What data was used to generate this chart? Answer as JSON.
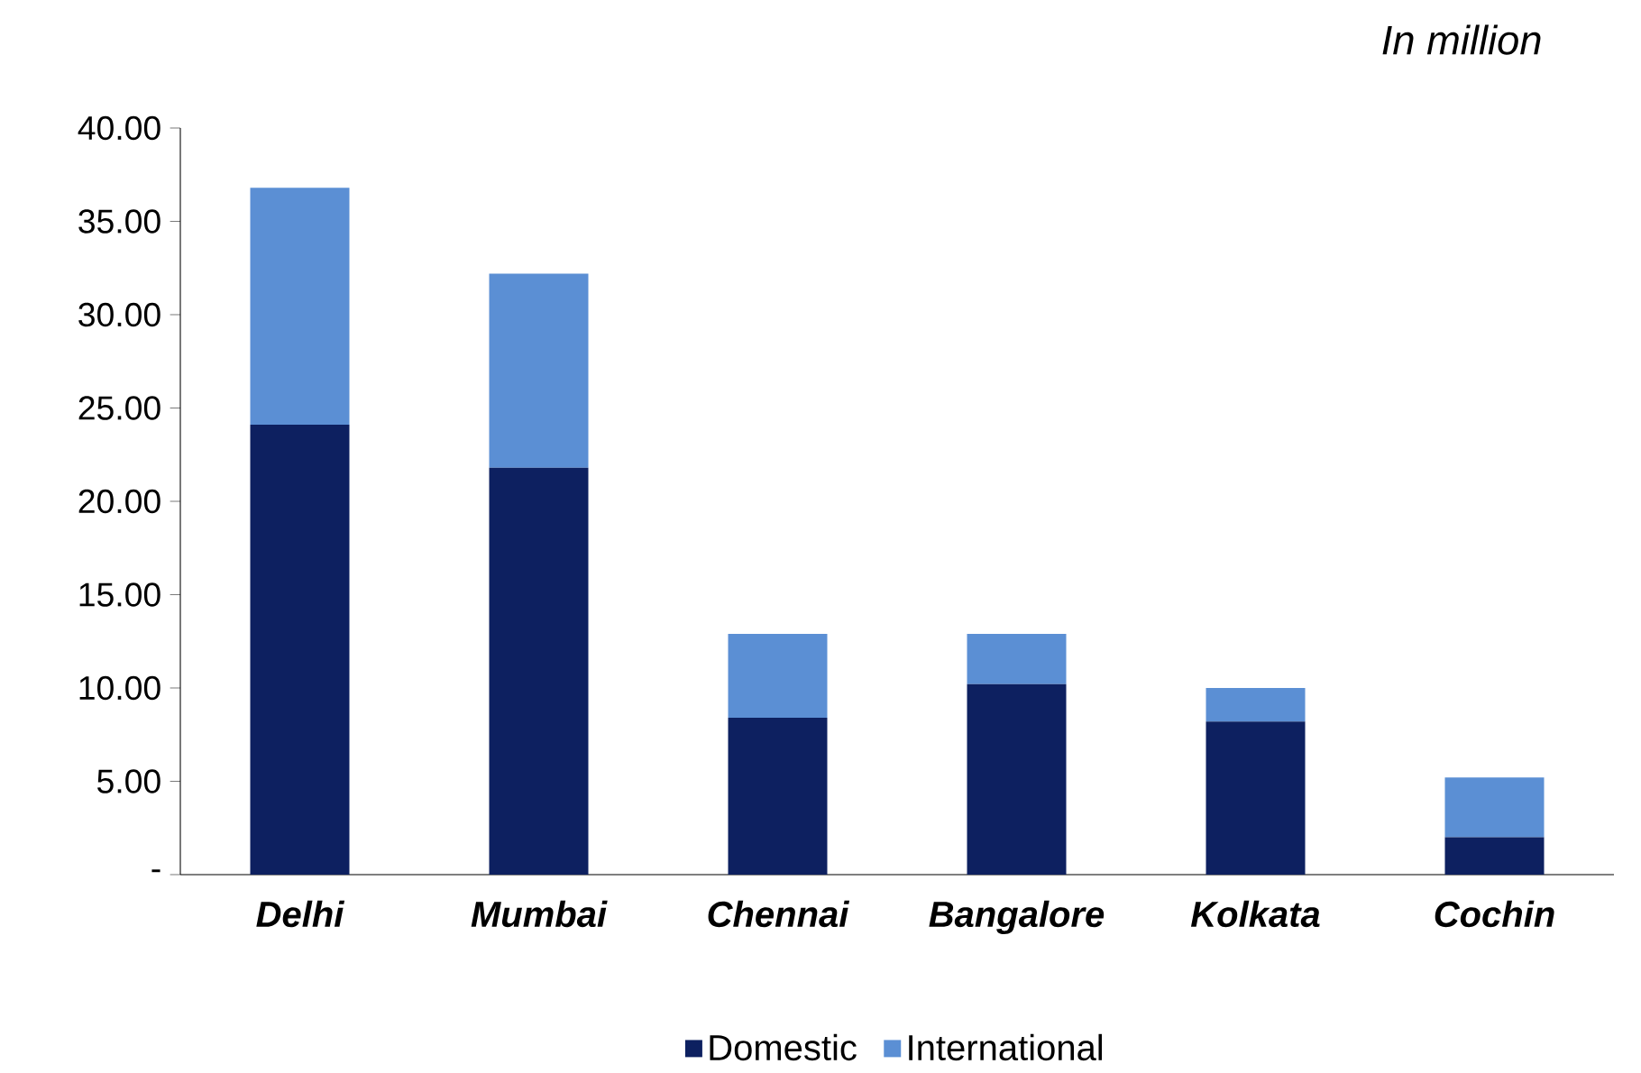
{
  "chart_data": {
    "type": "bar",
    "stacked": true,
    "annotations": [
      "In million"
    ],
    "categories": [
      "Delhi",
      "Mumbai",
      "Chennai",
      "Bangalore",
      "Kolkata",
      "Cochin"
    ],
    "series": [
      {
        "name": "Domestic",
        "color": "#0d2060",
        "values": [
          24.1,
          21.8,
          8.4,
          10.2,
          8.2,
          2.0
        ]
      },
      {
        "name": "International",
        "color": "#5b8fd4",
        "values": [
          12.7,
          10.4,
          4.5,
          2.7,
          1.8,
          3.2
        ]
      }
    ],
    "ylim": [
      0,
      40
    ],
    "yticks": [
      {
        "value": 0,
        "label": "-"
      },
      {
        "value": 5,
        "label": "5.00"
      },
      {
        "value": 10,
        "label": "10.00"
      },
      {
        "value": 15,
        "label": "15.00"
      },
      {
        "value": 20,
        "label": "20.00"
      },
      {
        "value": 25,
        "label": "25.00"
      },
      {
        "value": 30,
        "label": "30.00"
      },
      {
        "value": 35,
        "label": "35.00"
      },
      {
        "value": 40,
        "label": "40.00"
      }
    ],
    "grid": false,
    "legend": "bottom"
  }
}
